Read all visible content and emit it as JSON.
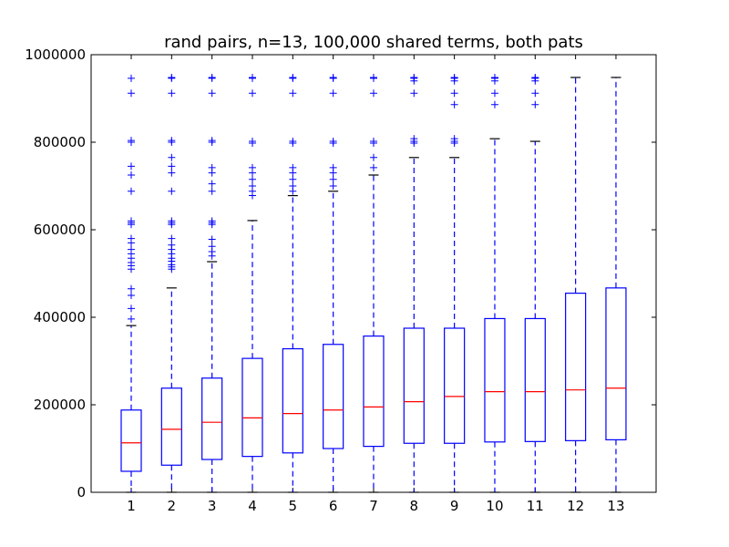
{
  "chart_data": {
    "type": "box",
    "title": "rand pairs, n=13, 100,000 shared terms, both pats",
    "xlabel": "",
    "ylabel": "",
    "ylim": [
      0,
      1000000
    ],
    "yticks": [
      0,
      200000,
      400000,
      600000,
      800000,
      1000000
    ],
    "ytick_labels": [
      "0",
      "200000",
      "400000",
      "600000",
      "800000",
      "1000000"
    ],
    "categories": [
      "1",
      "2",
      "3",
      "4",
      "5",
      "6",
      "7",
      "8",
      "9",
      "10",
      "11",
      "12",
      "13"
    ],
    "colors": {
      "box": "#0000ff",
      "median": "#ff0000",
      "whisker": "#0000ff",
      "cap": "#000000",
      "flier": "#0000ff"
    },
    "boxes": [
      {
        "label": "1",
        "whislo": 0,
        "q1": 48000,
        "med": 113000,
        "q3": 188000,
        "whishi": 381000,
        "fliers": [
          396000,
          420000,
          450000,
          465000,
          510000,
          518000,
          525000,
          535000,
          545000,
          555000,
          570000,
          580000,
          612000,
          616000,
          620000,
          688000,
          725000,
          745000,
          800000,
          804000,
          912000,
          946000
        ]
      },
      {
        "label": "2",
        "whislo": 0,
        "q1": 62000,
        "med": 144000,
        "q3": 238000,
        "whishi": 467000,
        "fliers": [
          510000,
          515000,
          520000,
          528000,
          535000,
          545000,
          555000,
          565000,
          580000,
          612000,
          616000,
          620000,
          688000,
          730000,
          745000,
          765000,
          800000,
          804000,
          912000,
          946000,
          948000
        ]
      },
      {
        "label": "3",
        "whislo": 0,
        "q1": 75000,
        "med": 160000,
        "q3": 261000,
        "whishi": 527000,
        "fliers": [
          540000,
          550000,
          562000,
          578000,
          612000,
          616000,
          620000,
          688000,
          705000,
          730000,
          742000,
          800000,
          804000,
          912000,
          946000,
          948000
        ]
      },
      {
        "label": "4",
        "whislo": 0,
        "q1": 82000,
        "med": 170000,
        "q3": 306000,
        "whishi": 621000,
        "fliers": [
          678000,
          688000,
          700000,
          715000,
          730000,
          742000,
          798000,
          802000,
          912000,
          946000,
          948000
        ]
      },
      {
        "label": "5",
        "whislo": 0,
        "q1": 90000,
        "med": 180000,
        "q3": 328000,
        "whishi": 678000,
        "fliers": [
          688000,
          700000,
          715000,
          730000,
          742000,
          798000,
          802000,
          912000,
          946000,
          948000
        ]
      },
      {
        "label": "6",
        "whislo": 0,
        "q1": 100000,
        "med": 188000,
        "q3": 338000,
        "whishi": 688000,
        "fliers": [
          700000,
          715000,
          730000,
          742000,
          798000,
          802000,
          912000,
          946000,
          948000
        ]
      },
      {
        "label": "7",
        "whislo": 0,
        "q1": 105000,
        "med": 195000,
        "q3": 357000,
        "whishi": 725000,
        "fliers": [
          742000,
          765000,
          798000,
          802000,
          912000,
          946000,
          948000
        ]
      },
      {
        "label": "8",
        "whislo": 0,
        "q1": 112000,
        "med": 207000,
        "q3": 375000,
        "whishi": 765000,
        "fliers": [
          798000,
          802000,
          808000,
          912000,
          940000,
          946000,
          948000
        ]
      },
      {
        "label": "9",
        "whislo": 0,
        "q1": 112000,
        "med": 219000,
        "q3": 375000,
        "whishi": 765000,
        "fliers": [
          798000,
          802000,
          808000,
          886000,
          912000,
          940000,
          946000,
          948000
        ]
      },
      {
        "label": "10",
        "whislo": 0,
        "q1": 115000,
        "med": 230000,
        "q3": 397000,
        "whishi": 808000,
        "fliers": [
          886000,
          912000,
          940000,
          946000,
          948000
        ]
      },
      {
        "label": "11",
        "whislo": 0,
        "q1": 116000,
        "med": 230000,
        "q3": 397000,
        "whishi": 802000,
        "fliers": [
          886000,
          912000,
          940000,
          946000,
          948000
        ]
      },
      {
        "label": "12",
        "whislo": 0,
        "q1": 118000,
        "med": 234000,
        "q3": 455000,
        "whishi": 948000,
        "fliers": []
      },
      {
        "label": "13",
        "whislo": 0,
        "q1": 120000,
        "med": 238000,
        "q3": 467000,
        "whishi": 948000,
        "fliers": []
      }
    ]
  }
}
